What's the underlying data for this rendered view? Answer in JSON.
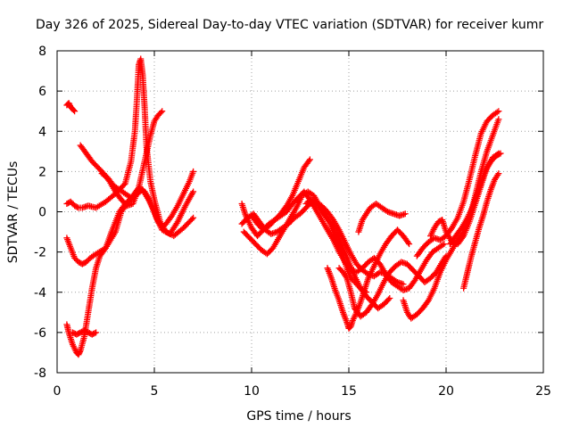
{
  "chart_data": {
    "type": "scatter",
    "title": "Day 326 of 2025, Sidereal Day-to-day VTEC variation (SDTVAR) for receiver kumr",
    "xlabel": "GPS time / hours",
    "ylabel": "SDTVAR / TECUs",
    "xlim": [
      0,
      25
    ],
    "ylim": [
      -8,
      8
    ],
    "xticks": [
      "0",
      "5",
      "10",
      "15",
      "20",
      "25"
    ],
    "yticks": [
      "-8",
      "-6",
      "-4",
      "-2",
      "0",
      "2",
      "4",
      "6",
      "8"
    ],
    "grid": true,
    "marker": "+",
    "color": "#ff0000",
    "series": [
      {
        "x": [
          0.5,
          0.6,
          0.7,
          0.8,
          0.9
        ],
        "y": [
          5.3,
          5.4,
          5.2,
          5.1,
          5.0
        ]
      },
      {
        "x": [
          0.5,
          0.7,
          0.9,
          1.1,
          1.3,
          1.6,
          2.0,
          2.5,
          3.0,
          3.5,
          3.8,
          4.0,
          4.1,
          4.2,
          4.3,
          4.4,
          4.5,
          4.6,
          4.8,
          5.0,
          5.3,
          5.6,
          6.0,
          6.5,
          7.0
        ],
        "y": [
          0.4,
          0.5,
          0.3,
          0.2,
          0.2,
          0.3,
          0.2,
          0.5,
          0.9,
          1.4,
          2.5,
          4.0,
          5.5,
          7.3,
          7.6,
          6.8,
          5.2,
          3.2,
          1.5,
          0.6,
          -0.5,
          -1.0,
          -1.2,
          -0.8,
          -0.3
        ]
      },
      {
        "x": [
          0.5,
          0.7,
          0.9,
          1.1,
          1.3,
          1.5,
          1.7,
          2.0,
          2.5,
          3.0,
          3.3,
          3.6,
          3.9,
          4.2,
          4.5,
          4.8,
          5.1,
          5.4,
          5.8,
          6.2,
          6.6,
          7.0
        ],
        "y": [
          -1.3,
          -1.8,
          -2.3,
          -2.5,
          -2.6,
          -2.5,
          -2.3,
          -2.1,
          -1.8,
          -1.0,
          0.0,
          0.4,
          0.8,
          1.2,
          1.0,
          0.5,
          -0.3,
          -0.9,
          -1.1,
          -0.5,
          0.3,
          1.0
        ]
      },
      {
        "x": [
          0.5,
          0.6,
          0.8,
          1.0,
          1.1,
          1.2,
          1.4,
          1.6,
          1.8,
          2.0,
          2.2,
          2.5,
          2.8,
          3.2,
          3.6,
          4.0,
          4.4,
          4.7,
          5.0,
          5.2,
          5.4,
          5.6,
          5.9,
          6.2,
          6.5,
          6.8,
          7.0
        ],
        "y": [
          -5.6,
          -6.0,
          -6.6,
          -7.0,
          -7.1,
          -6.9,
          -6.2,
          -5.0,
          -3.8,
          -2.8,
          -2.2,
          -1.8,
          -1.0,
          0.0,
          0.5,
          0.8,
          1.1,
          0.6,
          0.0,
          -0.5,
          -0.8,
          -0.6,
          -0.2,
          0.3,
          0.9,
          1.5,
          2.0
        ]
      },
      {
        "x": [
          1.2,
          1.5,
          1.8,
          2.1,
          2.4,
          2.7,
          3.0,
          3.3,
          3.6,
          3.9,
          4.2,
          4.5,
          4.8,
          5.0,
          5.2,
          5.4
        ],
        "y": [
          3.3,
          2.9,
          2.5,
          2.2,
          1.9,
          1.5,
          1.0,
          0.6,
          0.3,
          0.4,
          1.2,
          2.5,
          3.8,
          4.5,
          4.8,
          5.0
        ]
      },
      {
        "x": [
          0.8,
          1.0,
          1.2,
          1.4,
          1.6,
          1.8,
          2.0
        ],
        "y": [
          -6.0,
          -6.1,
          -6.0,
          -5.9,
          -6.0,
          -6.1,
          -6.0
        ]
      },
      {
        "x": [
          2.3,
          2.6,
          2.9,
          3.2,
          3.5,
          3.8
        ],
        "y": [
          1.9,
          1.7,
          1.3,
          1.1,
          0.9,
          0.7
        ]
      },
      {
        "x": [
          9.5,
          9.7,
          10.0,
          10.3,
          10.6,
          10.9,
          11.2,
          11.5,
          11.8,
          12.1,
          12.4,
          12.7,
          13.0
        ],
        "y": [
          0.4,
          -0.2,
          -0.8,
          -1.2,
          -0.9,
          -0.6,
          -0.4,
          -0.1,
          0.3,
          0.8,
          1.5,
          2.2,
          2.6
        ]
      },
      {
        "x": [
          9.5,
          9.8,
          10.1,
          10.4,
          10.7,
          11.0,
          11.3,
          11.6,
          11.9,
          12.2,
          12.5,
          12.8,
          13.1,
          13.4,
          13.7,
          14.0,
          14.3,
          14.6,
          14.9,
          15.1,
          15.3,
          15.5,
          15.7,
          15.9
        ],
        "y": [
          -0.6,
          -0.3,
          -0.1,
          -0.5,
          -0.9,
          -1.1,
          -1.0,
          -0.8,
          -0.6,
          -0.3,
          -0.1,
          0.2,
          0.5,
          0.3,
          -0.1,
          -0.5,
          -1.2,
          -1.9,
          -2.8,
          -3.3,
          -3.5,
          -3.7,
          -3.9,
          -4.0
        ]
      },
      {
        "x": [
          9.6,
          9.9,
          10.2,
          10.5,
          10.8,
          11.1,
          11.4,
          11.7,
          12.0,
          12.3,
          12.6,
          12.9,
          13.2,
          13.5,
          13.8,
          14.1,
          14.4,
          14.7,
          15.0,
          15.3,
          15.6,
          15.9,
          16.2,
          16.5,
          16.8,
          17.1
        ],
        "y": [
          -1.0,
          -1.3,
          -1.6,
          -1.9,
          -2.1,
          -1.8,
          -1.3,
          -0.8,
          -0.3,
          0.2,
          0.8,
          1.0,
          0.8,
          0.3,
          -0.2,
          -0.6,
          -1.1,
          -1.8,
          -2.5,
          -3.2,
          -3.8,
          -4.2,
          -4.5,
          -4.8,
          -4.6,
          -4.3
        ]
      },
      {
        "x": [
          10.0,
          10.3,
          10.6,
          10.9,
          11.2,
          11.5,
          11.8,
          12.1,
          12.4,
          12.7,
          13.0,
          13.3,
          13.6,
          13.9,
          14.2,
          14.5,
          14.8,
          15.1,
          15.4,
          15.7,
          16.0,
          16.3,
          16.6,
          16.9,
          17.2,
          17.5,
          17.8,
          18.1,
          18.4,
          18.7,
          19.0,
          19.3,
          19.6,
          19.9
        ],
        "y": [
          -0.2,
          -0.6,
          -0.9,
          -0.7,
          -0.4,
          -0.2,
          0.0,
          0.4,
          0.7,
          1.0,
          0.6,
          0.1,
          -0.4,
          -0.9,
          -1.4,
          -2.0,
          -2.5,
          -2.9,
          -3.0,
          -2.8,
          -2.5,
          -2.3,
          -2.6,
          -3.1,
          -3.5,
          -3.7,
          -3.9,
          -3.8,
          -3.4,
          -2.9,
          -2.4,
          -2.0,
          -1.8,
          -1.6
        ]
      },
      {
        "x": [
          12.8,
          13.0,
          13.3,
          13.6,
          13.9,
          14.2,
          14.5,
          14.8,
          15.1,
          15.4,
          15.7,
          16.0,
          16.3,
          16.6,
          16.9,
          17.2,
          17.5,
          17.8
        ],
        "y": [
          0.4,
          0.6,
          0.5,
          0.3,
          0.0,
          -0.4,
          -0.9,
          -1.5,
          -2.1,
          -2.6,
          -2.9,
          -3.1,
          -3.2,
          -3.0,
          -3.1,
          -3.3,
          -3.5,
          -3.6
        ]
      },
      {
        "x": [
          13.9,
          14.1,
          14.3,
          14.5,
          14.7,
          14.9,
          15.0,
          15.1,
          15.2,
          15.4,
          15.6,
          15.8,
          16.0,
          16.3,
          16.6,
          16.9,
          17.2,
          17.5,
          17.8,
          18.1
        ],
        "y": [
          -2.8,
          -3.3,
          -3.9,
          -4.4,
          -5.0,
          -5.5,
          -5.8,
          -5.7,
          -5.4,
          -5.0,
          -4.5,
          -3.9,
          -3.3,
          -2.7,
          -2.1,
          -1.6,
          -1.2,
          -0.9,
          -1.2,
          -1.6
        ]
      },
      {
        "x": [
          14.5,
          14.7,
          14.9,
          15.1,
          15.3,
          15.6,
          15.9,
          16.2,
          16.5,
          16.8,
          17.1,
          17.4,
          17.7,
          18.0,
          18.3,
          18.6,
          18.9,
          19.2,
          19.5,
          19.8,
          20.0
        ],
        "y": [
          -2.8,
          -3.0,
          -3.3,
          -4.0,
          -4.8,
          -5.2,
          -5.0,
          -4.6,
          -4.1,
          -3.5,
          -3.0,
          -2.7,
          -2.5,
          -2.6,
          -2.9,
          -3.2,
          -3.5,
          -3.3,
          -3.0,
          -2.5,
          -2.2
        ]
      },
      {
        "x": [
          15.5,
          15.7,
          15.9,
          16.1,
          16.4,
          16.7,
          17.0,
          17.3,
          17.6,
          17.9
        ],
        "y": [
          -1.0,
          -0.4,
          -0.1,
          0.2,
          0.4,
          0.2,
          0.0,
          -0.1,
          -0.2,
          -0.1
        ]
      },
      {
        "x": [
          17.8,
          18.0,
          18.2,
          18.5,
          18.8,
          19.1,
          19.4,
          19.7,
          20.0,
          20.3,
          20.6,
          20.9,
          21.2,
          21.5,
          21.8,
          22.1,
          22.4,
          22.7
        ],
        "y": [
          -4.4,
          -5.0,
          -5.3,
          -5.1,
          -4.8,
          -4.4,
          -3.8,
          -3.0,
          -2.4,
          -1.9,
          -1.4,
          -1.0,
          -0.3,
          0.8,
          2.0,
          3.0,
          3.8,
          4.6
        ]
      },
      {
        "x": [
          18.5,
          18.8,
          19.1,
          19.4,
          19.7,
          20.0,
          20.3,
          20.6,
          20.9,
          21.2,
          21.5,
          21.8,
          22.1,
          22.4,
          22.7
        ],
        "y": [
          -2.2,
          -1.8,
          -1.5,
          -1.3,
          -1.4,
          -1.2,
          -0.8,
          -0.3,
          0.5,
          1.6,
          2.8,
          3.9,
          4.5,
          4.8,
          5.0
        ]
      },
      {
        "x": [
          19.2,
          19.4,
          19.6,
          19.8,
          20.0,
          20.3,
          20.6,
          20.9,
          21.2,
          21.5,
          21.8,
          22.1,
          22.4,
          22.7
        ],
        "y": [
          -1.2,
          -0.8,
          -0.5,
          -0.4,
          -1.0,
          -1.5,
          -1.6,
          -1.2,
          -0.5,
          0.4,
          1.3,
          2.2,
          2.7,
          2.9
        ]
      },
      {
        "x": [
          20.2,
          20.5,
          20.8,
          21.1,
          21.4,
          21.7,
          22.0,
          22.3,
          22.6,
          22.8
        ],
        "y": [
          -1.6,
          -1.2,
          -0.8,
          -0.3,
          0.3,
          1.2,
          2.0,
          2.5,
          2.8,
          2.9
        ]
      },
      {
        "x": [
          20.9,
          21.1,
          21.3,
          21.5,
          21.7,
          21.9,
          22.1,
          22.3,
          22.5,
          22.7
        ],
        "y": [
          -3.8,
          -3.0,
          -2.2,
          -1.5,
          -0.8,
          -0.2,
          0.5,
          1.1,
          1.6,
          1.9
        ]
      }
    ]
  }
}
